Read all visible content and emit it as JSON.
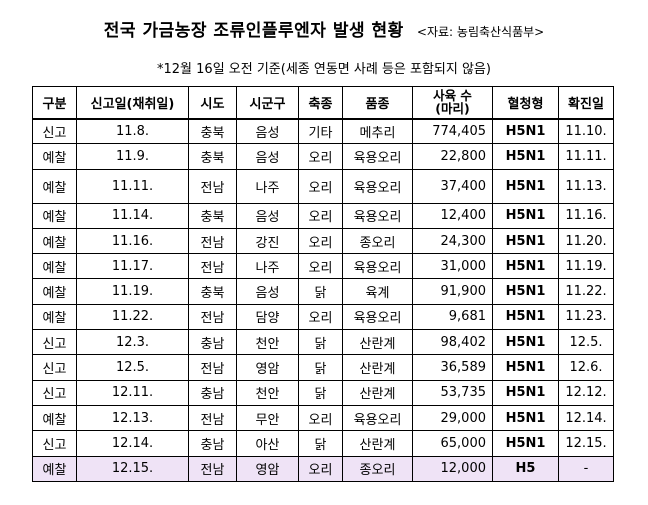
{
  "title": "전국 가금농장 조류인플루엔자 발생 현황",
  "source": "<자료: 농림축산식품부>",
  "note": "*12월 16일 오전 기준(세종 연동면 사례 등은 포함되지 않음)",
  "columns": [
    "구분",
    "신고일(채취일)",
    "시도",
    "시군구",
    "축종",
    "품종",
    "사육 수\n(마리)",
    "혈청형",
    "확진일"
  ],
  "columns_display": {
    "c0": "구분",
    "c1": "신고일(채취일)",
    "c2": "시도",
    "c3": "시군구",
    "c4": "축종",
    "c5": "품종",
    "c6a": "사육 수",
    "c6b": "(마리)",
    "c7": "혈청형",
    "c8": "확진일"
  },
  "rows": [
    {
      "kind": "신고",
      "date": "11.8.",
      "sido": "충북",
      "sigungu": "음성",
      "animal": "기타",
      "breed": "메추리",
      "count": "774,405",
      "serotype": "H5N1",
      "confirmed": "11.10."
    },
    {
      "kind": "예찰",
      "date": "11.9.",
      "sido": "충북",
      "sigungu": "음성",
      "animal": "오리",
      "breed": "육용오리",
      "count": "22,800",
      "serotype": "H5N1",
      "confirmed": "11.11."
    },
    {
      "kind": "예찰",
      "date": "11.11.",
      "sido": "전남",
      "sigungu": "나주",
      "animal": "오리",
      "breed": "육용오리",
      "count": "37,400",
      "serotype": "H5N1",
      "confirmed": "11.13."
    },
    {
      "kind": "예찰",
      "date": "11.14.",
      "sido": "충북",
      "sigungu": "음성",
      "animal": "오리",
      "breed": "육용오리",
      "count": "12,400",
      "serotype": "H5N1",
      "confirmed": "11.16."
    },
    {
      "kind": "예찰",
      "date": "11.16.",
      "sido": "전남",
      "sigungu": "강진",
      "animal": "오리",
      "breed": "종오리",
      "count": "24,300",
      "serotype": "H5N1",
      "confirmed": "11.20."
    },
    {
      "kind": "예찰",
      "date": "11.17.",
      "sido": "전남",
      "sigungu": "나주",
      "animal": "오리",
      "breed": "육용오리",
      "count": "31,000",
      "serotype": "H5N1",
      "confirmed": "11.19."
    },
    {
      "kind": "예찰",
      "date": "11.19.",
      "sido": "충북",
      "sigungu": "음성",
      "animal": "닭",
      "breed": "육계",
      "count": "91,900",
      "serotype": "H5N1",
      "confirmed": "11.22."
    },
    {
      "kind": "예찰",
      "date": "11.22.",
      "sido": "전남",
      "sigungu": "담양",
      "animal": "오리",
      "breed": "육용오리",
      "count": "9,681",
      "serotype": "H5N1",
      "confirmed": "11.23."
    },
    {
      "kind": "신고",
      "date": "12.3.",
      "sido": "충남",
      "sigungu": "천안",
      "animal": "닭",
      "breed": "산란계",
      "count": "98,402",
      "serotype": "H5N1",
      "confirmed": "12.5."
    },
    {
      "kind": "신고",
      "date": "12.5.",
      "sido": "전남",
      "sigungu": "영암",
      "animal": "닭",
      "breed": "산란계",
      "count": "36,589",
      "serotype": "H5N1",
      "confirmed": "12.6."
    },
    {
      "kind": "신고",
      "date": "12.11.",
      "sido": "충남",
      "sigungu": "천안",
      "animal": "닭",
      "breed": "산란계",
      "count": "53,735",
      "serotype": "H5N1",
      "confirmed": "12.12."
    },
    {
      "kind": "예찰",
      "date": "12.13.",
      "sido": "전남",
      "sigungu": "무안",
      "animal": "오리",
      "breed": "육용오리",
      "count": "29,000",
      "serotype": "H5N1",
      "confirmed": "12.14."
    },
    {
      "kind": "신고",
      "date": "12.14.",
      "sido": "충남",
      "sigungu": "아산",
      "animal": "닭",
      "breed": "산란계",
      "count": "65,000",
      "serotype": "H5N1",
      "confirmed": "12.15."
    },
    {
      "kind": "예찰",
      "date": "12.15.",
      "sido": "전남",
      "sigungu": "영암",
      "animal": "오리",
      "breed": "종오리",
      "count": "12,000",
      "serotype": "H5",
      "confirmed": "-"
    }
  ],
  "highlight_color": "#efe3f6"
}
